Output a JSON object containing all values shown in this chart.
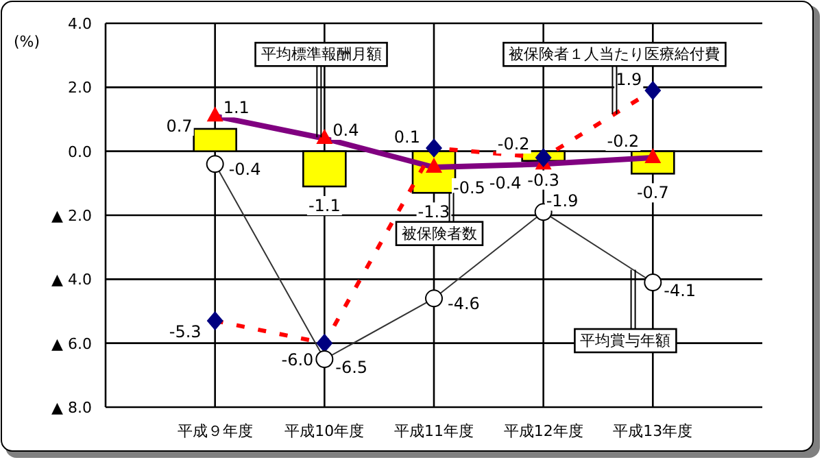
{
  "chart_data": {
    "type": "line",
    "ylabel": "(%)",
    "categories": [
      "平成９年度",
      "平成10年度",
      "平成11年度",
      "平成12年度",
      "平成13年度"
    ],
    "ylim": [
      -8,
      4
    ],
    "yticks": [
      {
        "value": 4,
        "label": "4.0"
      },
      {
        "value": 2,
        "label": "2.0"
      },
      {
        "value": 0,
        "label": "0.0"
      },
      {
        "value": -2,
        "label": "▲ 2.0"
      },
      {
        "value": -4,
        "label": "▲ 4.0"
      },
      {
        "value": -6,
        "label": "▲ 6.0"
      },
      {
        "value": -8,
        "label": "▲ 8.0"
      }
    ],
    "grid": true,
    "legend": false,
    "series": [
      {
        "name": "被保険者数",
        "type": "bar",
        "color": "#ffff00",
        "values": [
          0.7,
          -1.1,
          -1.3,
          -0.3,
          -0.7
        ],
        "value_labels": [
          "0.7",
          "-1.1",
          "-1.3",
          "-0.3",
          "-0.7"
        ]
      },
      {
        "name": "平均標準報酬月額",
        "color": "#800080",
        "marker": "triangle",
        "line_style": "solid",
        "values": [
          1.1,
          0.4,
          -0.5,
          -0.4,
          -0.2
        ],
        "value_labels": [
          "1.1",
          "0.4",
          "-0.5",
          "-0.4",
          "-0.2"
        ]
      },
      {
        "name": "被保険者１人当たり医療給付費",
        "color": "#ff0000",
        "marker": "diamond",
        "line_style": "dashed",
        "values": [
          -5.3,
          -6.0,
          0.1,
          -0.2,
          1.9
        ],
        "value_labels": [
          "-5.3",
          "-6.0",
          "0.1",
          "-0.2",
          "1.9"
        ]
      },
      {
        "name": "平均賞与年額",
        "color": "#333333",
        "marker": "circle",
        "line_style": "solid",
        "values": [
          -0.4,
          -6.5,
          -4.6,
          -1.9,
          -4.1
        ],
        "value_labels": [
          "-0.4",
          "-6.5",
          "-4.6",
          "-1.9",
          "-4.1"
        ]
      }
    ]
  }
}
